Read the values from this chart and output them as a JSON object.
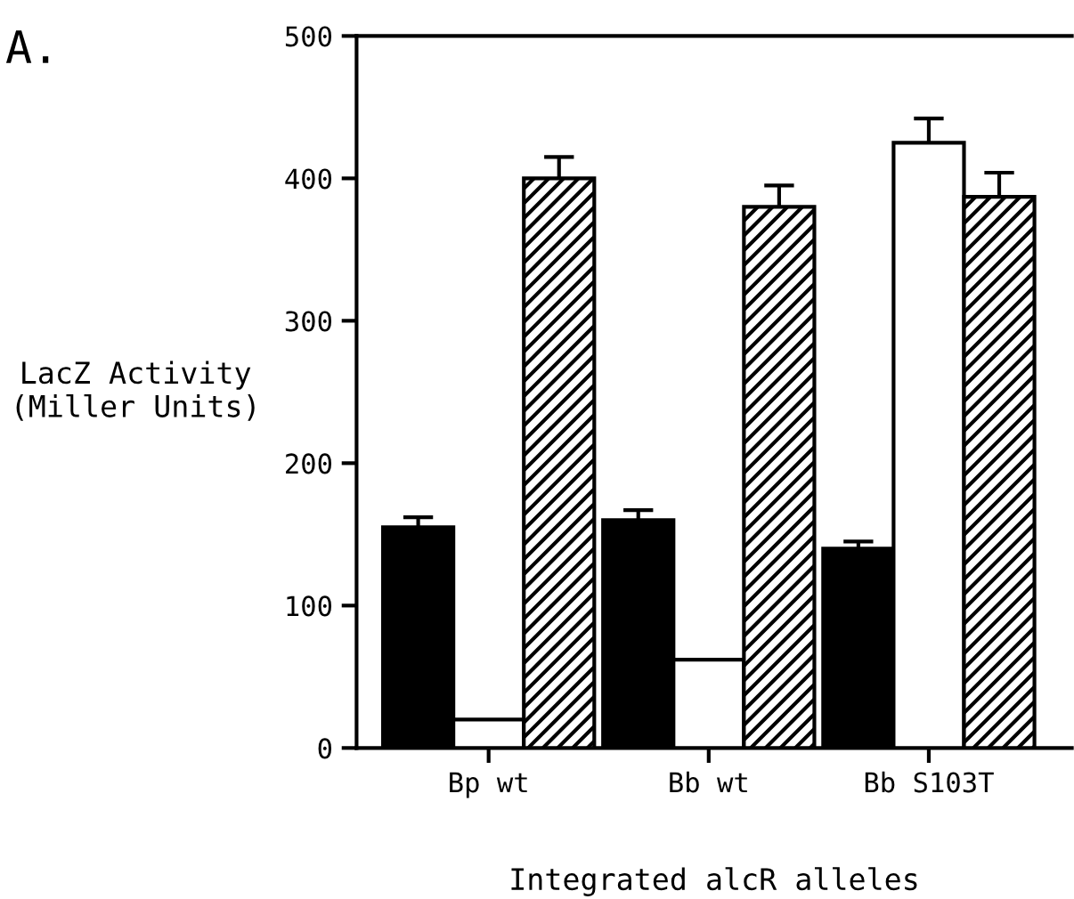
{
  "chart_data": {
    "type": "bar",
    "categories": [
      "Bp wt",
      "Bb wt",
      "Bb S103T"
    ],
    "series": [
      {
        "color": "#000000",
        "values": [
          155,
          160,
          140
        ],
        "errors": [
          7,
          7,
          5
        ]
      },
      {
        "color": "#ffffff",
        "values": [
          20,
          62,
          425
        ],
        "errors": [
          null,
          null,
          17
        ]
      },
      {
        "color": "#000000",
        "values": [
          400,
          380,
          387
        ],
        "errors": [
          15,
          15,
          17
        ]
      }
    ],
    "xlabel": "Integrated alcR alleles",
    "ylabel": "LacZ Activity\n(Miller Units)",
    "ylim": [
      0,
      500
    ],
    "yticks": [
      0,
      100,
      200,
      300,
      400,
      500
    ],
    "grid": false,
    "legend": false,
    "annotations": [
      "A."
    ]
  }
}
